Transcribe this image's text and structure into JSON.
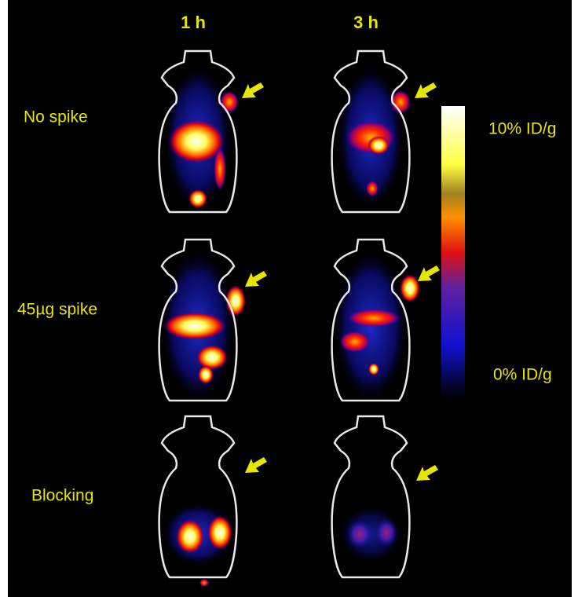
{
  "columns": [
    "1 h",
    "3 h"
  ],
  "rows": [
    "No spike",
    "45µg spike",
    "Blocking"
  ],
  "colorbar": {
    "max_label": "10% ID/g",
    "min_label": "0% ID/g"
  }
}
